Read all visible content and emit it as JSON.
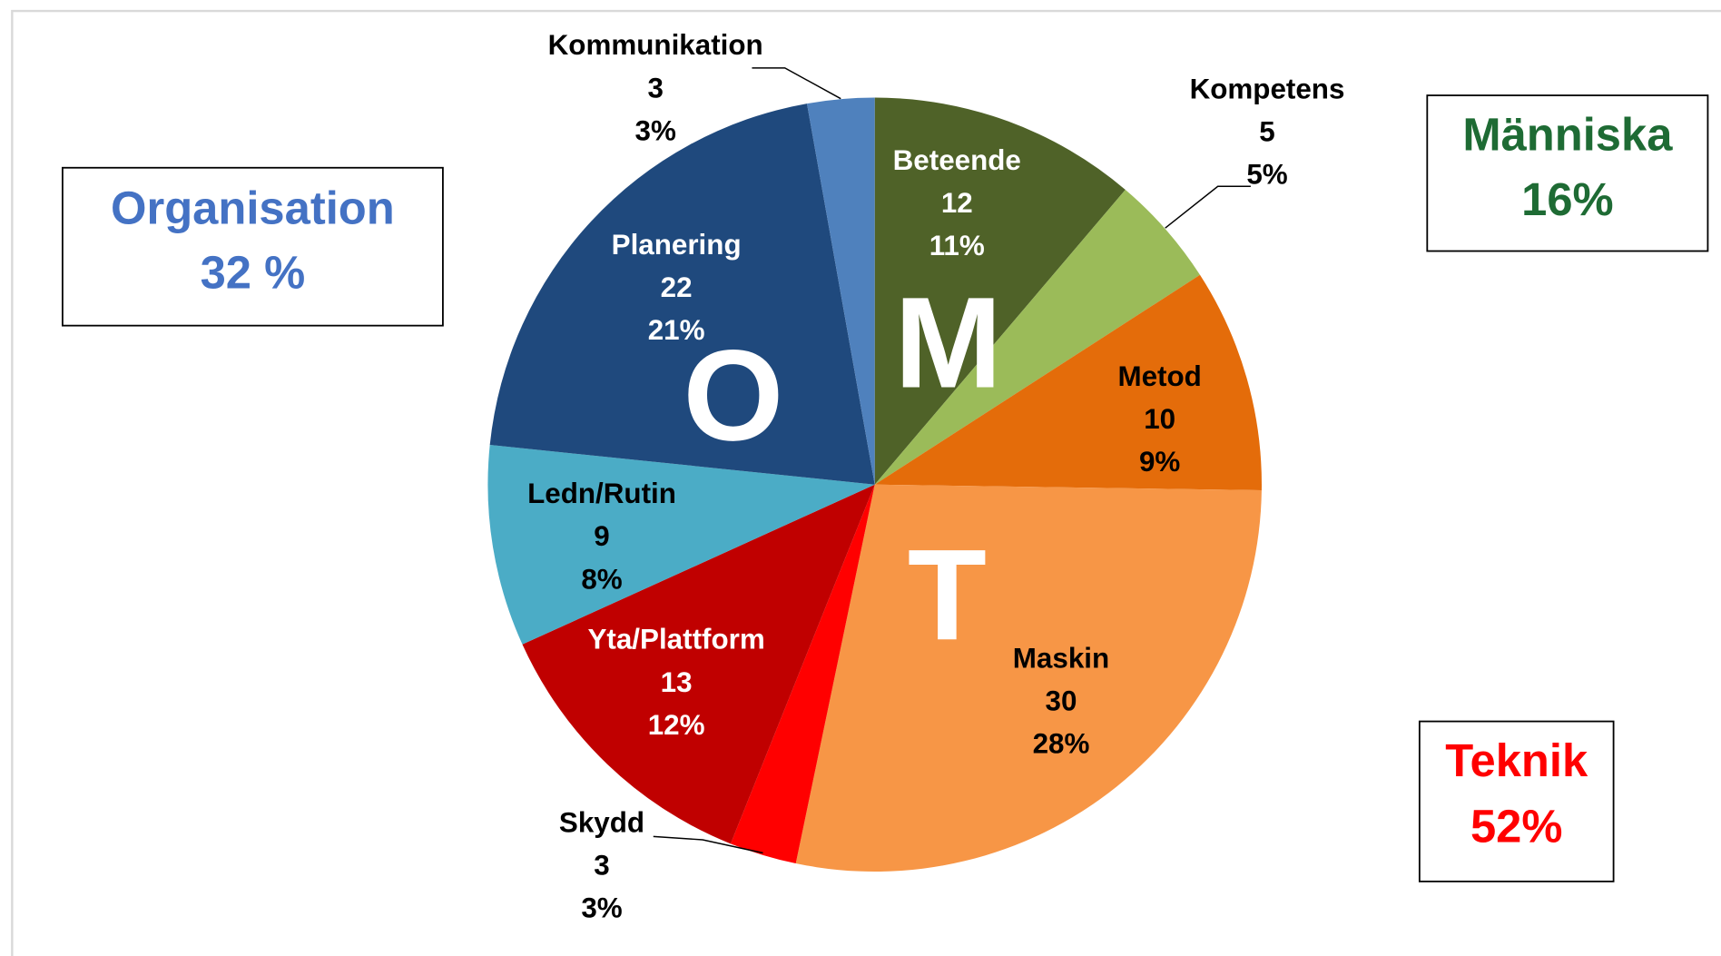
{
  "chart_data": {
    "type": "pie",
    "categories": [
      "Beteende",
      "Kompetens",
      "Metod",
      "Maskin",
      "Skydd",
      "Yta/Plattform",
      "Ledn/Rutin",
      "Planering",
      "Kommunikation"
    ],
    "values": [
      12,
      5,
      10,
      30,
      3,
      13,
      9,
      22,
      3
    ],
    "percent_labels": [
      "11%",
      "5%",
      "9%",
      "28%",
      "3%",
      "12%",
      "8%",
      "21%",
      "3%"
    ],
    "colors": [
      "#4f6228",
      "#9bbb59",
      "#e46c0a",
      "#f79646",
      "#ff0000",
      "#c00000",
      "#4bacc6",
      "#1f497d",
      "#4f81bd"
    ],
    "letters": [
      "M",
      "T",
      "O"
    ],
    "groups": [
      {
        "name": "Organisation",
        "share": "32 %",
        "color": "#4472c4"
      },
      {
        "name": "Människa",
        "share": "16%",
        "color": "#1e6b34"
      },
      {
        "name": "Teknik",
        "share": "52%",
        "color": "#ff0000"
      }
    ]
  }
}
